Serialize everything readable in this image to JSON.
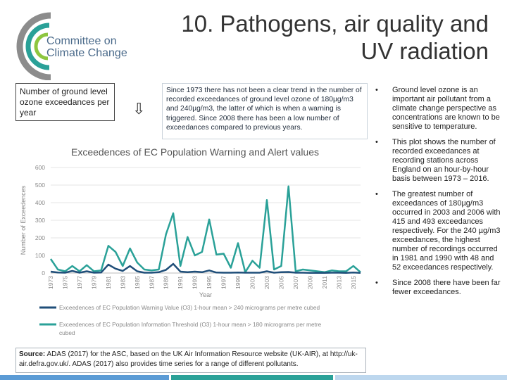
{
  "logo": {
    "line1": "Committee on",
    "line2": "Climate Change"
  },
  "title": {
    "line1": "10. Pathogens, air quality and",
    "line2": "UV radiation"
  },
  "side_label": "Number of ground level ozone exceedances per year",
  "arrow_glyph": "⇩",
  "intro_text": "Since 1973 there has not been a clear trend in the number of recorded exceedances of ground level ozone of 180µg/m3 and 240µg/m3, the latter of which is when a warning is triggered.  Since 2008 there has been a low number of exceedances compared to  previous years.",
  "bullets": [
    {
      "dot": "•",
      "text": "Ground level ozone is an important air pollutant from a climate change perspective as concentrations are known to be sensitive to temperature."
    },
    {
      "dot": "•",
      "text": "This plot shows the number of recorded exceedances at recording stations across England on an hour-by-hour basis between 1973 – 2016."
    },
    {
      "dot": "•",
      "text": "The greatest number of exceedances of 180µg/m3 occurred in 2003 and 2006 with 415 and 493 exceedances respectively. For the 240 µg/m3 exceedances, the highest number of recordings occurred in 1981 and 1990 with 48 and 52 exceedances respectively."
    },
    {
      "dot": "•",
      "text": "Since 2008 there have been far fewer exceedances."
    }
  ],
  "source": {
    "label": "Source:",
    "text": " ADAS (2017) for the ASC, based on the UK Air Information Resource website (UK-AIR), at http://uk-air.defra.gov.uk/.  ADAS (2017) also provides time series for a range of different pollutants."
  },
  "colors": {
    "warning": "#1f4e79",
    "information": "#2aa198",
    "logo_teal": "#2aa198",
    "logo_gray": "#8c8c8c",
    "logo_green": "#8dc63f",
    "bar_blue": "#5b9bd5",
    "bar_teal": "#2aa198",
    "bar_light": "#bdd7ee"
  },
  "chart_data": {
    "type": "line",
    "title": "Exceedences of EC Population Warning and Alert values",
    "xlabel": "Year",
    "ylabel": "Number of Exceedences",
    "ylim": [
      0,
      600
    ],
    "yticks": [
      0,
      100,
      200,
      300,
      400,
      500,
      600
    ],
    "x": [
      1973,
      1974,
      1975,
      1976,
      1977,
      1978,
      1979,
      1980,
      1981,
      1982,
      1983,
      1984,
      1985,
      1986,
      1987,
      1988,
      1989,
      1990,
      1991,
      1992,
      1993,
      1994,
      1995,
      1996,
      1997,
      1998,
      1999,
      2000,
      2001,
      2002,
      2003,
      2004,
      2005,
      2006,
      2007,
      2008,
      2009,
      2010,
      2011,
      2012,
      2013,
      2014,
      2015,
      2016
    ],
    "xtick_labels": [
      "1973",
      "1975",
      "1977",
      "1979",
      "1981",
      "1983",
      "1985",
      "1987",
      "1989",
      "1991",
      "1993",
      "1995",
      "1997",
      "1999",
      "2001",
      "2003",
      "2005",
      "2007",
      "2009",
      "2011",
      "2013",
      "2015"
    ],
    "grid": true,
    "legend_position": "bottom",
    "series": [
      {
        "name": "Exceedences of EC Population Warning Value (O3) 1-hour mean > 240 micrograms per metre cubed",
        "color": "#1f4e79",
        "values": [
          8,
          3,
          2,
          12,
          2,
          10,
          2,
          3,
          48,
          25,
          12,
          40,
          10,
          2,
          2,
          5,
          18,
          52,
          8,
          5,
          8,
          5,
          15,
          3,
          2,
          2,
          3,
          2,
          2,
          2,
          10,
          2,
          5,
          6,
          2,
          2,
          1,
          1,
          1,
          2,
          2,
          1,
          3,
          1
        ]
      },
      {
        "name": "Exceedences of EC Population Information Threshold (O3) 1-hour mean > 180 micrograms per metre cubed",
        "color": "#2aa198",
        "values": [
          80,
          20,
          10,
          40,
          10,
          45,
          10,
          15,
          155,
          120,
          40,
          140,
          60,
          20,
          15,
          20,
          220,
          340,
          40,
          205,
          100,
          120,
          305,
          105,
          110,
          30,
          170,
          5,
          70,
          30,
          415,
          20,
          40,
          493,
          10,
          20,
          15,
          10,
          5,
          15,
          10,
          10,
          40,
          5
        ]
      }
    ]
  }
}
